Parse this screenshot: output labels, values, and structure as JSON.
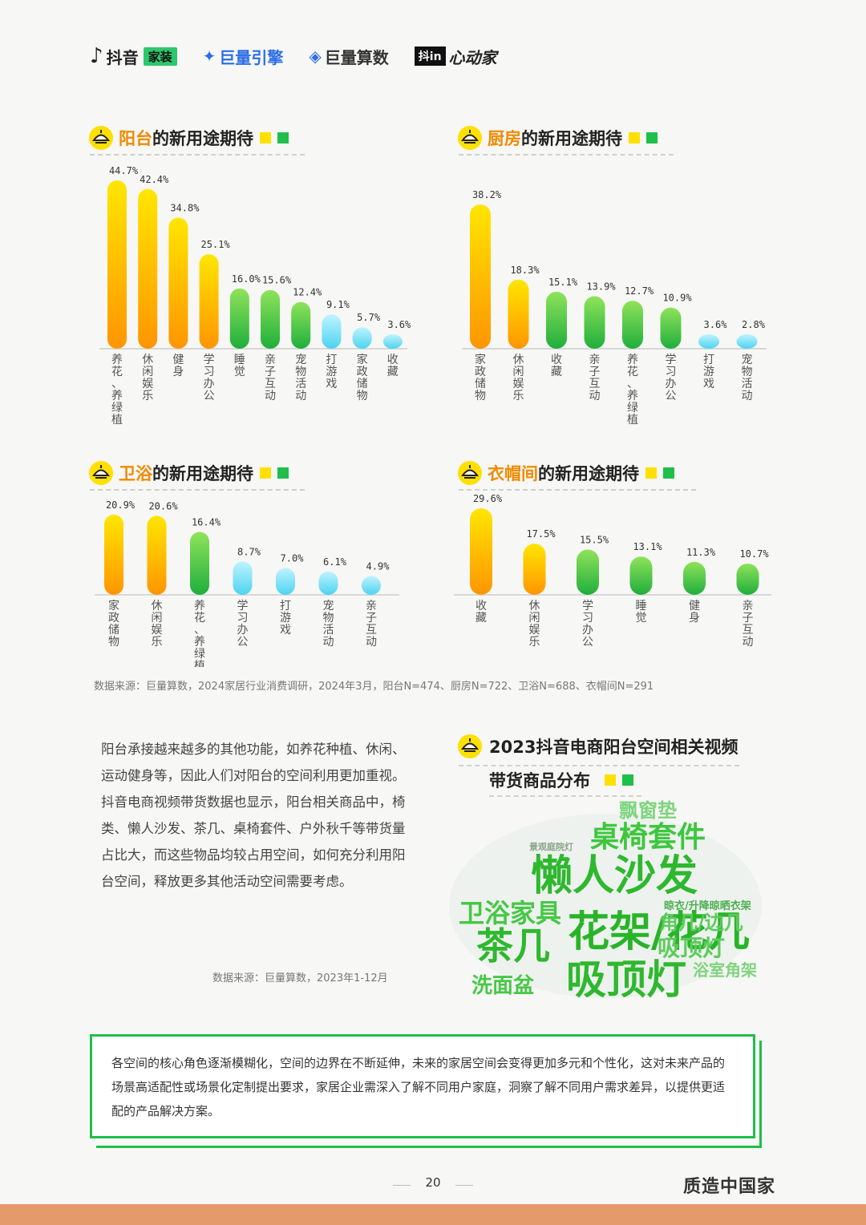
{
  "header": {
    "logos": [
      {
        "name": "抖音",
        "tag": "家装"
      },
      {
        "name": "巨量引擎"
      },
      {
        "name": "巨量算数"
      },
      {
        "box": "抖in",
        "name": "心动家"
      }
    ]
  },
  "sections": [
    {
      "highlight": "阳台",
      "rest": "的新用途期待"
    },
    {
      "highlight": "厨房",
      "rest": "的新用途期待"
    },
    {
      "highlight": "卫浴",
      "rest": "的新用途期待"
    },
    {
      "highlight": "衣帽间",
      "rest": "的新用途期待"
    }
  ],
  "chart_data": [
    {
      "type": "bar",
      "categories": [
        "养花、养绿植",
        "休闲娱乐",
        "健身",
        "学习办公",
        "睡觉",
        "亲子互动",
        "宠物活动",
        "打游戏",
        "家政储物",
        "收藏"
      ],
      "values": [
        44.7,
        42.4,
        34.8,
        25.1,
        16.0,
        15.6,
        12.4,
        9.1,
        5.7,
        3.6
      ],
      "labels": [
        "44.7%",
        "42.4%",
        "34.8%",
        "25.1%",
        "16.0%",
        "15.6%",
        "12.4%",
        "9.1%",
        "5.7%",
        "3.6%"
      ],
      "colors": [
        "yellow",
        "yellow",
        "yellow",
        "yellow",
        "green",
        "green",
        "green",
        "cyan",
        "cyan",
        "cyan"
      ]
    },
    {
      "type": "bar",
      "categories": [
        "家政储物",
        "休闲娱乐",
        "收藏",
        "亲子互动",
        "养花、养绿植",
        "学习办公",
        "打游戏",
        "宠物活动"
      ],
      "values": [
        38.2,
        18.3,
        15.1,
        13.9,
        12.7,
        10.9,
        3.6,
        2.8
      ],
      "labels": [
        "38.2%",
        "18.3%",
        "15.1%",
        "13.9%",
        "12.7%",
        "10.9%",
        "3.6%",
        "2.8%"
      ],
      "colors": [
        "yellow",
        "yellow",
        "green",
        "green",
        "green",
        "green",
        "cyan",
        "cyan"
      ]
    },
    {
      "type": "bar",
      "categories": [
        "家政储物",
        "休闲娱乐",
        "养花、养绿植",
        "学习办公",
        "打游戏",
        "宠物活动",
        "亲子互动"
      ],
      "values": [
        20.9,
        20.6,
        16.4,
        8.7,
        7.0,
        6.1,
        4.9
      ],
      "labels": [
        "20.9%",
        "20.6%",
        "16.4%",
        "8.7%",
        "7.0%",
        "6.1%",
        "4.9%"
      ],
      "colors": [
        "yellow",
        "yellow",
        "green",
        "cyan",
        "cyan",
        "cyan",
        "cyan"
      ]
    },
    {
      "type": "bar",
      "categories": [
        "收藏",
        "休闲娱乐",
        "学习办公",
        "睡觉",
        "健身",
        "亲子互动"
      ],
      "values": [
        29.6,
        17.5,
        15.5,
        13.1,
        11.3,
        10.7
      ],
      "labels": [
        "29.6%",
        "17.5%",
        "15.5%",
        "13.1%",
        "11.3%",
        "10.7%"
      ],
      "colors": [
        "yellow",
        "yellow",
        "green",
        "green",
        "green",
        "green"
      ]
    }
  ],
  "source1": "数据来源：巨量算数，2024家居行业消费调研，2024年3月，阳台N=474、厨房N=722、卫浴N=688、衣帽间N=291",
  "body_text": "阳台承接越来越多的其他功能，如养花种植、休闲、运动健身等，因此人们对阳台的空间利用更加重视。抖音电商视频带货数据也显示，阳台相关商品中，椅类、懒人沙发、茶几、桌椅套件、户外秋千等带货量占比大，而这些物品均较占用空间，如何充分利用阳台空间，释放更多其他活动空间需要考虑。",
  "source2": "数据来源：巨量算数，2023年1-12月",
  "cloud_title_line1": "2023抖音电商阳台空间相关视频",
  "cloud_title_line2": "带货商品分布",
  "word_cloud": [
    {
      "text": "飘窗垫"
    },
    {
      "text": "桌椅套件"
    },
    {
      "text": "懒人沙发"
    },
    {
      "text": "卫浴家具"
    },
    {
      "text": "椅类"
    },
    {
      "text": "茶几"
    },
    {
      "text": "花架/花几"
    },
    {
      "text": "角几/边几"
    },
    {
      "text": "吸顶灯"
    },
    {
      "text": "浴室角架"
    },
    {
      "text": "洗面盆"
    },
    {
      "text": "晾衣/升降晾晒衣架"
    },
    {
      "text": "景观庭院灯"
    }
  ],
  "callout": "各空间的核心角色逐渐模糊化，空间的边界在不断延伸，未来的家居空间会变得更加多元和个性化，这对未来产品的场景高适配性或场景化定制提出要求，家居企业需深入了解不同用户家庭，洞察了解不同用户需求差异，以提供更适配的产品解决方案。",
  "page_number": "20",
  "brand": "质造中国家",
  "colors": {
    "accent": "#f08a00",
    "green": "#1fbf4a",
    "yellow": "#ffe000",
    "footer": "#e59a6c"
  }
}
